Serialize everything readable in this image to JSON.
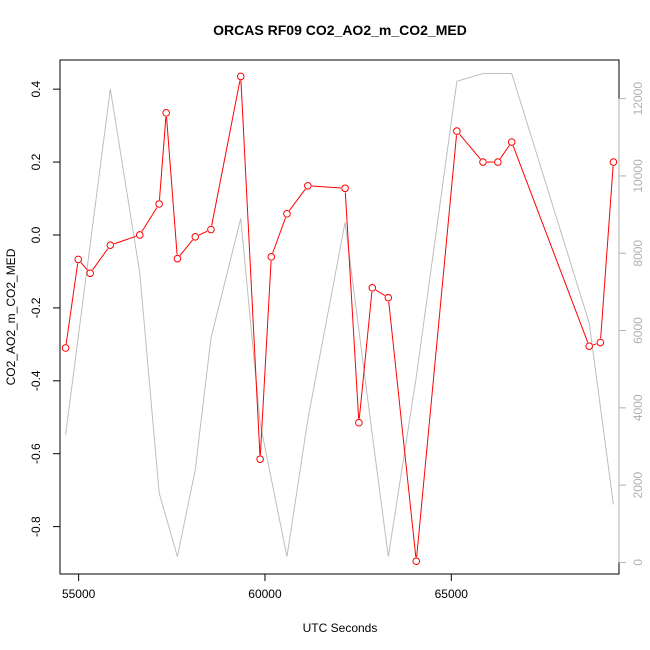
{
  "chart_data": {
    "type": "line",
    "title": "ORCAS RF09 CO2_AO2_m_CO2_MED",
    "xlabel": "UTC Seconds",
    "ylabel": "CO2_AO2_m_CO2_MED",
    "xlim": [
      54500,
      69500
    ],
    "ylim": [
      -0.93,
      0.48
    ],
    "y2lim": [
      -300,
      13000
    ],
    "x_ticks": [
      55000,
      60000,
      65000
    ],
    "y_ticks": [
      -0.8,
      -0.6,
      -0.4,
      -0.2,
      0.0,
      0.2,
      0.4
    ],
    "y2_ticks": [
      0,
      2000,
      4000,
      6000,
      8000,
      10000,
      12000
    ],
    "x_tick_labels": [
      "55000",
      "60000",
      "65000"
    ],
    "y_tick_labels": [
      "-0.8",
      "-0.6",
      "-0.4",
      "-0.2",
      "0.0",
      "0.2",
      "0.4"
    ],
    "y2_tick_labels": [
      "0",
      "2000",
      "4000",
      "6000",
      "8000",
      "10000",
      "12000"
    ],
    "grid": false,
    "colors": {
      "primary": "#ff0000",
      "secondary": "#bebebe",
      "axis": "#000000"
    },
    "series": [
      {
        "axis": "left",
        "style": "line-with-open-circles",
        "x": [
          54650,
          54990,
          55310,
          55850,
          56640,
          57160,
          57350,
          57650,
          58130,
          58550,
          59350,
          59870,
          60170,
          60590,
          61150,
          62150,
          62520,
          62880,
          63310,
          64060,
          65150,
          65850,
          66250,
          66620,
          68700,
          69000,
          69350
        ],
        "values": [
          -0.31,
          -0.067,
          -0.105,
          -0.028,
          0.0,
          0.085,
          0.335,
          -0.065,
          -0.005,
          0.015,
          0.435,
          -0.615,
          -0.06,
          0.058,
          0.135,
          0.128,
          -0.515,
          -0.145,
          -0.172,
          -0.895,
          0.285,
          0.2,
          0.2,
          0.255,
          -0.305,
          -0.295,
          0.2
        ]
      },
      {
        "axis": "right",
        "style": "line",
        "x": [
          54650,
          55850,
          56640,
          57160,
          57650,
          58130,
          58550,
          59350,
          59870,
          60590,
          61150,
          62150,
          62880,
          63310,
          64060,
          65150,
          65850,
          66620,
          68700,
          69350
        ],
        "values": [
          3300,
          12250,
          7500,
          1800,
          150,
          2400,
          5800,
          8900,
          3600,
          150,
          3700,
          8800,
          3300,
          150,
          4800,
          12450,
          12650,
          12650,
          6200,
          1500
        ]
      }
    ]
  }
}
